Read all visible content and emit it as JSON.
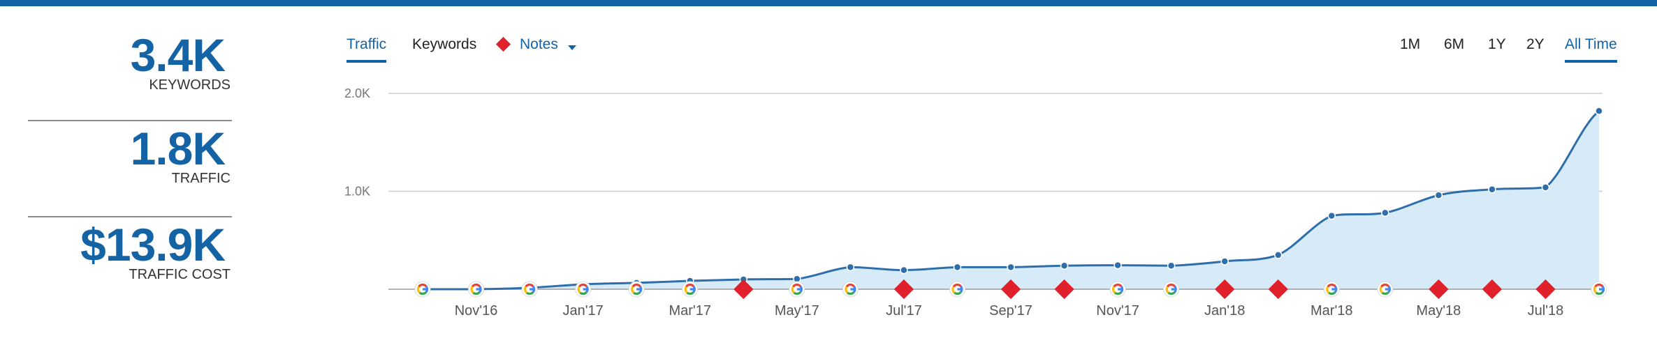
{
  "stats": [
    {
      "value": "3.4K",
      "label": "KEYWORDS"
    },
    {
      "value": "1.8K",
      "label": "TRAFFIC"
    },
    {
      "value": "$13.9K",
      "label": "TRAFFIC COST"
    }
  ],
  "tabs": {
    "traffic": "Traffic",
    "keywords": "Keywords",
    "notes": "Notes",
    "active": "Traffic"
  },
  "ranges": {
    "labels": [
      "1M",
      "6M",
      "1Y",
      "2Y",
      "All Time"
    ],
    "active": "All Time"
  },
  "colors": {
    "accent": "#1464a5",
    "line": "#2e6fab",
    "area": "#d6eaf8",
    "note_marker": "#e0212b",
    "grid": "#cfcfcf"
  },
  "chart_data": {
    "type": "area",
    "series": [
      {
        "x": [
          "Oct'16",
          "Nov'16",
          "Dec'16",
          "Jan'17",
          "Feb'17",
          "Mar'17",
          "Apr'17",
          "May'17",
          "Jun'17",
          "Jul'17",
          "Aug'17",
          "Sep'17",
          "Oct'17",
          "Nov'17",
          "Dec'17",
          "Jan'18",
          "Feb'18",
          "Mar'18",
          "Apr'18",
          "May'18",
          "Jun'18",
          "Jul'18",
          "Aug'18"
        ],
        "values": [
          0,
          0,
          15,
          50,
          65,
          85,
          100,
          105,
          225,
          195,
          225,
          225,
          240,
          245,
          240,
          285,
          350,
          750,
          780,
          960,
          1020,
          1040,
          1820
        ]
      }
    ],
    "x_tick_labels": [
      "Nov'16",
      "Jan'17",
      "Mar'17",
      "May'17",
      "Jul'17",
      "Sep'17",
      "Nov'17",
      "Jan'18",
      "Mar'18",
      "May'18",
      "Jul'18"
    ],
    "y_tick_labels": [
      "1.0K",
      "2.0K"
    ],
    "y_ticks": [
      1000,
      2000
    ],
    "ylim": [
      0,
      2000
    ],
    "grid": true,
    "legend": "none",
    "markers": [
      "google",
      "google",
      "google",
      "google",
      "google",
      "google",
      "note",
      "google",
      "google",
      "note",
      "google",
      "note",
      "note",
      "google",
      "google",
      "note",
      "note",
      "google",
      "google",
      "note",
      "note",
      "note",
      "google"
    ]
  }
}
